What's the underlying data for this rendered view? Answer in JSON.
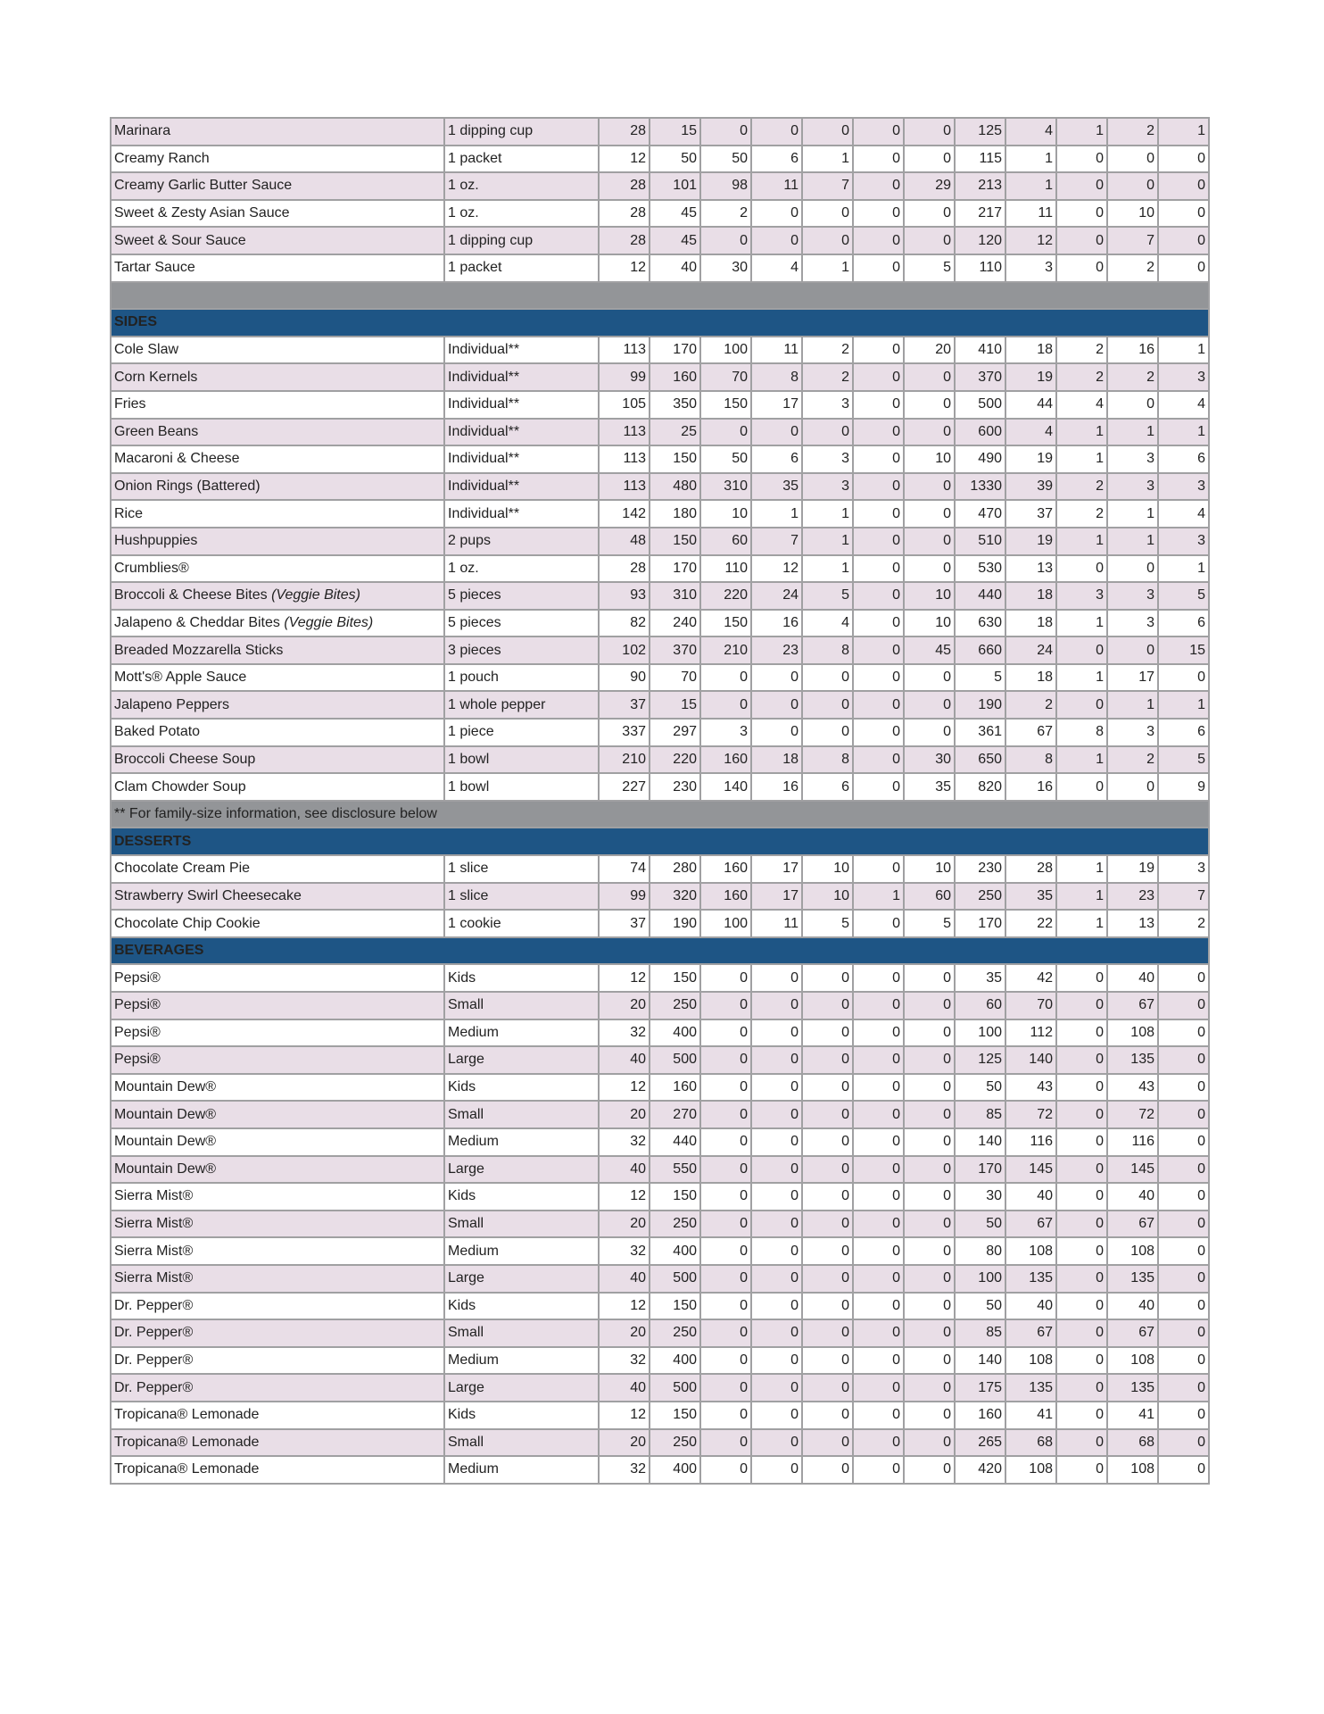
{
  "colors": {
    "stripe": "#e9dee7",
    "section_header": "#1e5585",
    "divider": "#939598",
    "border": "#a0a0a2"
  },
  "sections": [
    {
      "header": "",
      "stripe_first": true,
      "rows": [
        {
          "name": "Marinara",
          "serving": "1 dipping cup",
          "values": [
            "28",
            "15",
            "0",
            "0",
            "0",
            "0",
            "0",
            "125",
            "4",
            "1",
            "2",
            "1"
          ]
        },
        {
          "name": "Creamy Ranch",
          "serving": "1  packet",
          "values": [
            "12",
            "50",
            "50",
            "6",
            "1",
            "0",
            "0",
            "115",
            "1",
            "0",
            "0",
            "0"
          ]
        },
        {
          "name": "Creamy Garlic Butter Sauce",
          "serving": "1 oz.",
          "values": [
            "28",
            "101",
            "98",
            "11",
            "7",
            "0",
            "29",
            "213",
            "1",
            "0",
            "0",
            "0"
          ]
        },
        {
          "name": "Sweet & Zesty Asian Sauce",
          "serving": "1 oz.",
          "values": [
            "28",
            "45",
            "2",
            "0",
            "0",
            "0",
            "0",
            "217",
            "11",
            "0",
            "10",
            "0"
          ]
        },
        {
          "name": "Sweet & Sour Sauce",
          "serving": "1 dipping cup",
          "values": [
            "28",
            "45",
            "0",
            "0",
            "0",
            "0",
            "0",
            "120",
            "12",
            "0",
            "7",
            "0"
          ]
        },
        {
          "name": "Tartar Sauce",
          "serving": "1  packet",
          "values": [
            "12",
            "40",
            "30",
            "4",
            "1",
            "0",
            "5",
            "110",
            "3",
            "0",
            "2",
            "0"
          ]
        }
      ],
      "note": ""
    },
    {
      "header": "SIDES",
      "stripe_first": false,
      "rows": [
        {
          "name": "Cole Slaw",
          "serving": "Individual**",
          "values": [
            "113",
            "170",
            "100",
            "11",
            "2",
            "0",
            "20",
            "410",
            "18",
            "2",
            "16",
            "1"
          ]
        },
        {
          "name": "Corn Kernels",
          "serving": "Individual**",
          "values": [
            "99",
            "160",
            "70",
            "8",
            "2",
            "0",
            "0",
            "370",
            "19",
            "2",
            "2",
            "3"
          ]
        },
        {
          "name": "Fries",
          "serving": "Individual**",
          "values": [
            "105",
            "350",
            "150",
            "17",
            "3",
            "0",
            "0",
            "500",
            "44",
            "4",
            "0",
            "4"
          ]
        },
        {
          "name": "Green Beans",
          "serving": "Individual**",
          "values": [
            "113",
            "25",
            "0",
            "0",
            "0",
            "0",
            "0",
            "600",
            "4",
            "1",
            "1",
            "1"
          ]
        },
        {
          "name": "Macaroni & Cheese",
          "serving": "Individual**",
          "values": [
            "113",
            "150",
            "50",
            "6",
            "3",
            "0",
            "10",
            "490",
            "19",
            "1",
            "3",
            "6"
          ]
        },
        {
          "name": "Onion Rings (Battered)",
          "serving": "Individual**",
          "values": [
            "113",
            "480",
            "310",
            "35",
            "3",
            "0",
            "0",
            "1330",
            "39",
            "2",
            "3",
            "3"
          ]
        },
        {
          "name": "Rice",
          "serving": "Individual**",
          "values": [
            "142",
            "180",
            "10",
            "1",
            "1",
            "0",
            "0",
            "470",
            "37",
            "2",
            "1",
            "4"
          ]
        },
        {
          "name": "Hushpuppies",
          "serving": "2 pups",
          "values": [
            "48",
            "150",
            "60",
            "7",
            "1",
            "0",
            "0",
            "510",
            "19",
            "1",
            "1",
            "3"
          ]
        },
        {
          "name": "Crumblies®",
          "serving": "1 oz.",
          "values": [
            "28",
            "170",
            "110",
            "12",
            "1",
            "0",
            "0",
            "530",
            "13",
            "0",
            "0",
            "1"
          ]
        },
        {
          "name": "Broccoli & Cheese Bites ",
          "italic": "(Veggie Bites)",
          "serving": "5 pieces",
          "values": [
            "93",
            "310",
            "220",
            "24",
            "5",
            "0",
            "10",
            "440",
            "18",
            "3",
            "3",
            "5"
          ]
        },
        {
          "name": "Jalapeno & Cheddar Bites ",
          "italic": "(Veggie Bites)",
          "serving": "5 pieces",
          "values": [
            "82",
            "240",
            "150",
            "16",
            "4",
            "0",
            "10",
            "630",
            "18",
            "1",
            "3",
            "6"
          ]
        },
        {
          "name": "Breaded Mozzarella Sticks",
          "serving": "3 pieces",
          "values": [
            "102",
            "370",
            "210",
            "23",
            "8",
            "0",
            "45",
            "660",
            "24",
            "0",
            "0",
            "15"
          ]
        },
        {
          "name": "Mott's® Apple Sauce",
          "serving": "1 pouch",
          "values": [
            "90",
            "70",
            "0",
            "0",
            "0",
            "0",
            "0",
            "5",
            "18",
            "1",
            "17",
            "0"
          ]
        },
        {
          "name": "Jalapeno Peppers",
          "serving": "1  whole  pepper",
          "values": [
            "37",
            "15",
            "0",
            "0",
            "0",
            "0",
            "0",
            "190",
            "2",
            "0",
            "1",
            "1"
          ]
        },
        {
          "name": "Baked Potato",
          "serving": "1  piece",
          "values": [
            "337",
            "297",
            "3",
            "0",
            "0",
            "0",
            "0",
            "361",
            "67",
            "8",
            "3",
            "6"
          ]
        },
        {
          "name": "Broccoli Cheese Soup",
          "serving": "1  bowl",
          "values": [
            "210",
            "220",
            "160",
            "18",
            "8",
            "0",
            "30",
            "650",
            "8",
            "1",
            "2",
            "5"
          ]
        },
        {
          "name": "Clam Chowder Soup",
          "serving": "1  bowl",
          "values": [
            "227",
            "230",
            "140",
            "16",
            "6",
            "0",
            "35",
            "820",
            "16",
            "0",
            "0",
            "9"
          ]
        }
      ],
      "note": "** For family-size information, see disclosure below"
    },
    {
      "header": "DESSERTS",
      "stripe_first": false,
      "rows": [
        {
          "name": "Chocolate Cream Pie",
          "serving": "1 slice",
          "values": [
            "74",
            "280",
            "160",
            "17",
            "10",
            "0",
            "10",
            "230",
            "28",
            "1",
            "19",
            "3"
          ]
        },
        {
          "name": "Strawberry Swirl Cheesecake",
          "serving": "1 slice",
          "values": [
            "99",
            "320",
            "160",
            "17",
            "10",
            "1",
            "60",
            "250",
            "35",
            "1",
            "23",
            "7"
          ]
        },
        {
          "name": "Chocolate Chip Cookie",
          "serving": "1  cookie",
          "values": [
            "37",
            "190",
            "100",
            "11",
            "5",
            "0",
            "5",
            "170",
            "22",
            "1",
            "13",
            "2"
          ]
        }
      ],
      "note": ""
    },
    {
      "header": "BEVERAGES",
      "stripe_first": false,
      "rows": [
        {
          "name": "Pepsi®",
          "serving": "Kids",
          "values": [
            "12",
            "150",
            "0",
            "0",
            "0",
            "0",
            "0",
            "35",
            "42",
            "0",
            "40",
            "0"
          ]
        },
        {
          "name": "Pepsi®",
          "serving": "Small",
          "values": [
            "20",
            "250",
            "0",
            "0",
            "0",
            "0",
            "0",
            "60",
            "70",
            "0",
            "67",
            "0"
          ]
        },
        {
          "name": "Pepsi®",
          "serving": "Medium",
          "values": [
            "32",
            "400",
            "0",
            "0",
            "0",
            "0",
            "0",
            "100",
            "112",
            "0",
            "108",
            "0"
          ]
        },
        {
          "name": "Pepsi®",
          "serving": "Large",
          "values": [
            "40",
            "500",
            "0",
            "0",
            "0",
            "0",
            "0",
            "125",
            "140",
            "0",
            "135",
            "0"
          ]
        },
        {
          "name": "Mountain Dew®",
          "serving": "Kids",
          "values": [
            "12",
            "160",
            "0",
            "0",
            "0",
            "0",
            "0",
            "50",
            "43",
            "0",
            "43",
            "0"
          ]
        },
        {
          "name": "Mountain Dew®",
          "serving": "Small",
          "values": [
            "20",
            "270",
            "0",
            "0",
            "0",
            "0",
            "0",
            "85",
            "72",
            "0",
            "72",
            "0"
          ]
        },
        {
          "name": "Mountain Dew®",
          "serving": "Medium",
          "values": [
            "32",
            "440",
            "0",
            "0",
            "0",
            "0",
            "0",
            "140",
            "116",
            "0",
            "116",
            "0"
          ]
        },
        {
          "name": "Mountain Dew®",
          "serving": "Large",
          "values": [
            "40",
            "550",
            "0",
            "0",
            "0",
            "0",
            "0",
            "170",
            "145",
            "0",
            "145",
            "0"
          ]
        },
        {
          "name": "Sierra Mist®",
          "serving": "Kids",
          "values": [
            "12",
            "150",
            "0",
            "0",
            "0",
            "0",
            "0",
            "30",
            "40",
            "0",
            "40",
            "0"
          ]
        },
        {
          "name": "Sierra Mist®",
          "serving": "Small",
          "values": [
            "20",
            "250",
            "0",
            "0",
            "0",
            "0",
            "0",
            "50",
            "67",
            "0",
            "67",
            "0"
          ]
        },
        {
          "name": "Sierra Mist®",
          "serving": "Medium",
          "values": [
            "32",
            "400",
            "0",
            "0",
            "0",
            "0",
            "0",
            "80",
            "108",
            "0",
            "108",
            "0"
          ]
        },
        {
          "name": "Sierra Mist®",
          "serving": "Large",
          "values": [
            "40",
            "500",
            "0",
            "0",
            "0",
            "0",
            "0",
            "100",
            "135",
            "0",
            "135",
            "0"
          ]
        },
        {
          "name": "Dr. Pepper®",
          "serving": "Kids",
          "values": [
            "12",
            "150",
            "0",
            "0",
            "0",
            "0",
            "0",
            "50",
            "40",
            "0",
            "40",
            "0"
          ]
        },
        {
          "name": "Dr. Pepper®",
          "serving": "Small",
          "values": [
            "20",
            "250",
            "0",
            "0",
            "0",
            "0",
            "0",
            "85",
            "67",
            "0",
            "67",
            "0"
          ]
        },
        {
          "name": "Dr. Pepper®",
          "serving": "Medium",
          "values": [
            "32",
            "400",
            "0",
            "0",
            "0",
            "0",
            "0",
            "140",
            "108",
            "0",
            "108",
            "0"
          ]
        },
        {
          "name": "Dr. Pepper®",
          "serving": "Large",
          "values": [
            "40",
            "500",
            "0",
            "0",
            "0",
            "0",
            "0",
            "175",
            "135",
            "0",
            "135",
            "0"
          ]
        },
        {
          "name": "Tropicana® Lemonade",
          "serving": "Kids",
          "values": [
            "12",
            "150",
            "0",
            "0",
            "0",
            "0",
            "0",
            "160",
            "41",
            "0",
            "41",
            "0"
          ]
        },
        {
          "name": "Tropicana® Lemonade",
          "serving": "Small",
          "values": [
            "20",
            "250",
            "0",
            "0",
            "0",
            "0",
            "0",
            "265",
            "68",
            "0",
            "68",
            "0"
          ]
        },
        {
          "name": "Tropicana® Lemonade",
          "serving": "Medium",
          "values": [
            "32",
            "400",
            "0",
            "0",
            "0",
            "0",
            "0",
            "420",
            "108",
            "0",
            "108",
            "0"
          ]
        }
      ],
      "note": ""
    }
  ]
}
